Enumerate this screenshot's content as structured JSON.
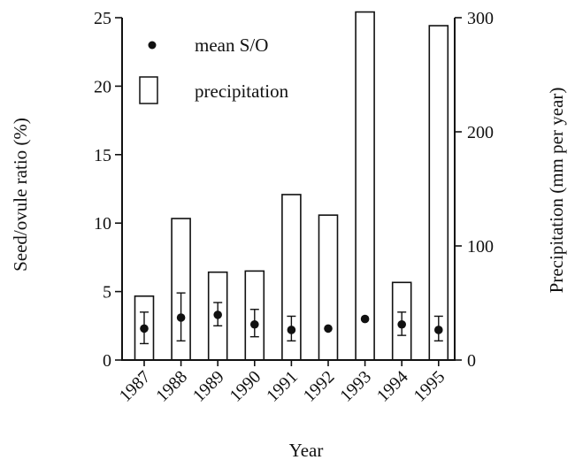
{
  "chart_data": {
    "type": "bar",
    "categories": [
      "1987",
      "1988",
      "1989",
      "1990",
      "1991",
      "1992",
      "1993",
      "1994",
      "1995"
    ],
    "xlabel": "Year",
    "ylabel_left": "Seed/ovule ratio (%)",
    "ylabel_right": "Precipitation (mm per year)",
    "ylim_left": [
      0,
      25
    ],
    "ylim_right": [
      0,
      300
    ],
    "yticks_left": [
      "0",
      "5",
      "10",
      "15",
      "20",
      "25"
    ],
    "yticks_right": [
      "0",
      "100",
      "200",
      "300"
    ],
    "grid": false,
    "legend": {
      "position": "top-left",
      "entries": [
        "mean S/O",
        "precipitation"
      ]
    },
    "series": [
      {
        "name": "precipitation",
        "type": "bar",
        "axis": "right",
        "values": [
          56,
          124,
          77,
          78,
          145,
          127,
          305,
          68,
          293
        ]
      },
      {
        "name": "mean S/O",
        "type": "scatter",
        "axis": "left",
        "values": [
          2.3,
          3.1,
          3.3,
          2.6,
          2.2,
          2.3,
          3.0,
          2.6,
          2.2
        ],
        "error_low": [
          1.2,
          1.4,
          2.5,
          1.7,
          1.4,
          null,
          null,
          1.8,
          1.4
        ],
        "error_high": [
          3.5,
          4.9,
          4.2,
          3.7,
          3.2,
          null,
          null,
          3.5,
          3.2
        ]
      }
    ]
  }
}
